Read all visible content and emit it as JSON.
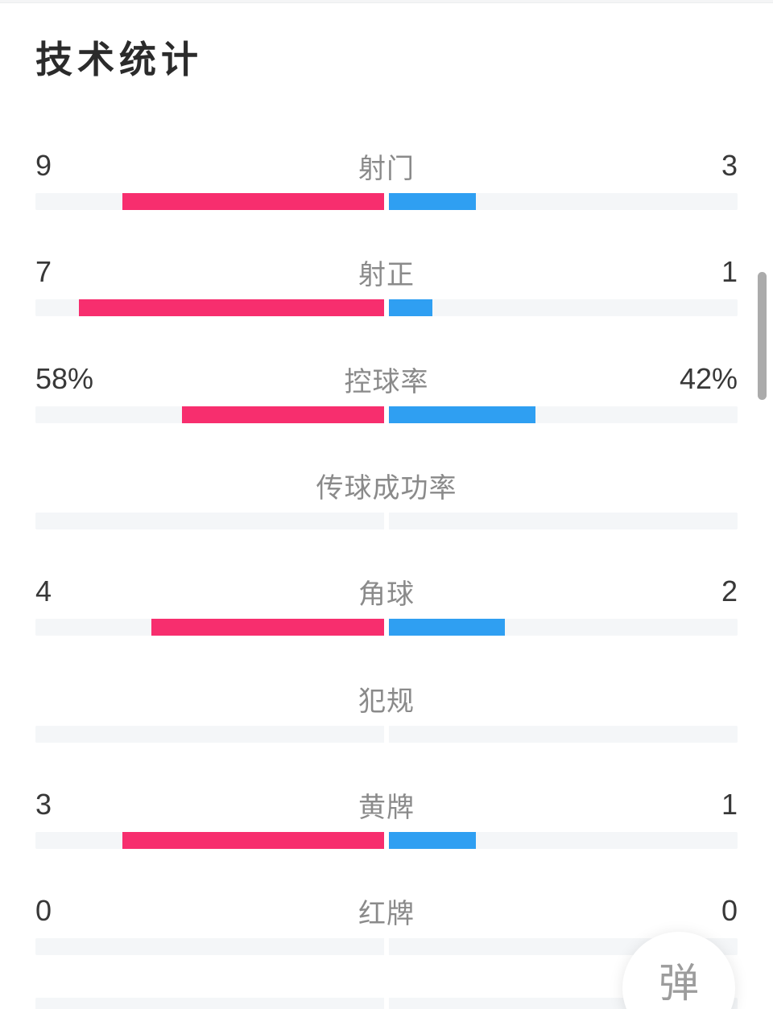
{
  "header": {
    "title": "技术统计"
  },
  "colors": {
    "home": "#f72e6e",
    "away": "#2f9ff2",
    "track": "#f4f6f8"
  },
  "stats": {
    "rows": [
      {
        "label": "射门",
        "home_value": "9",
        "away_value": "3",
        "home_pct": 75,
        "away_pct": 25
      },
      {
        "label": "射正",
        "home_value": "7",
        "away_value": "1",
        "home_pct": 87.5,
        "away_pct": 12.5
      },
      {
        "label": "控球率",
        "home_value": "58%",
        "away_value": "42%",
        "home_pct": 58,
        "away_pct": 42
      },
      {
        "label": "传球成功率",
        "home_value": "",
        "away_value": "",
        "home_pct": 0,
        "away_pct": 0
      },
      {
        "label": "角球",
        "home_value": "4",
        "away_value": "2",
        "home_pct": 66.7,
        "away_pct": 33.3
      },
      {
        "label": "犯规",
        "home_value": "",
        "away_value": "",
        "home_pct": 0,
        "away_pct": 0
      },
      {
        "label": "黄牌",
        "home_value": "3",
        "away_value": "1",
        "home_pct": 75,
        "away_pct": 25
      },
      {
        "label": "红牌",
        "home_value": "0",
        "away_value": "0",
        "home_pct": 0,
        "away_pct": 0
      }
    ]
  },
  "danmu_button": {
    "label": "弹"
  }
}
